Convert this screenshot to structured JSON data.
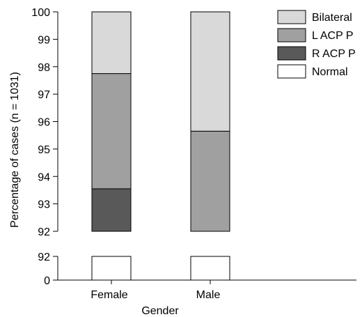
{
  "chart_data": {
    "type": "bar",
    "stacked": true,
    "broken_y_axis": true,
    "xlabel": "Gender",
    "ylabel": "Percentage of cases (n = 1031)",
    "categories": [
      "Female",
      "Male"
    ],
    "upper_panel": {
      "ylim": [
        92,
        100
      ],
      "yticks": [
        "92",
        "93",
        "94",
        "95",
        "96",
        "97",
        "98",
        "99",
        "100"
      ]
    },
    "lower_panel": {
      "ylim": [
        0,
        92
      ],
      "yticks": [
        "0",
        "92"
      ]
    },
    "series": [
      {
        "name": "Normal",
        "color": "#ffffff",
        "values": [
          92,
          92
        ]
      },
      {
        "name": "R ACP P",
        "color": "#595959",
        "values": [
          1.55,
          0.0
        ]
      },
      {
        "name": "L ACP P",
        "color": "#a0a0a0",
        "values": [
          4.2,
          3.65
        ]
      },
      {
        "name": "Bilateral",
        "color": "#d9d9d9",
        "values": [
          2.25,
          4.35
        ]
      }
    ],
    "legend": {
      "position": "top-right",
      "order": [
        "Bilateral",
        "L ACP P",
        "R ACP P",
        "Normal"
      ]
    }
  }
}
